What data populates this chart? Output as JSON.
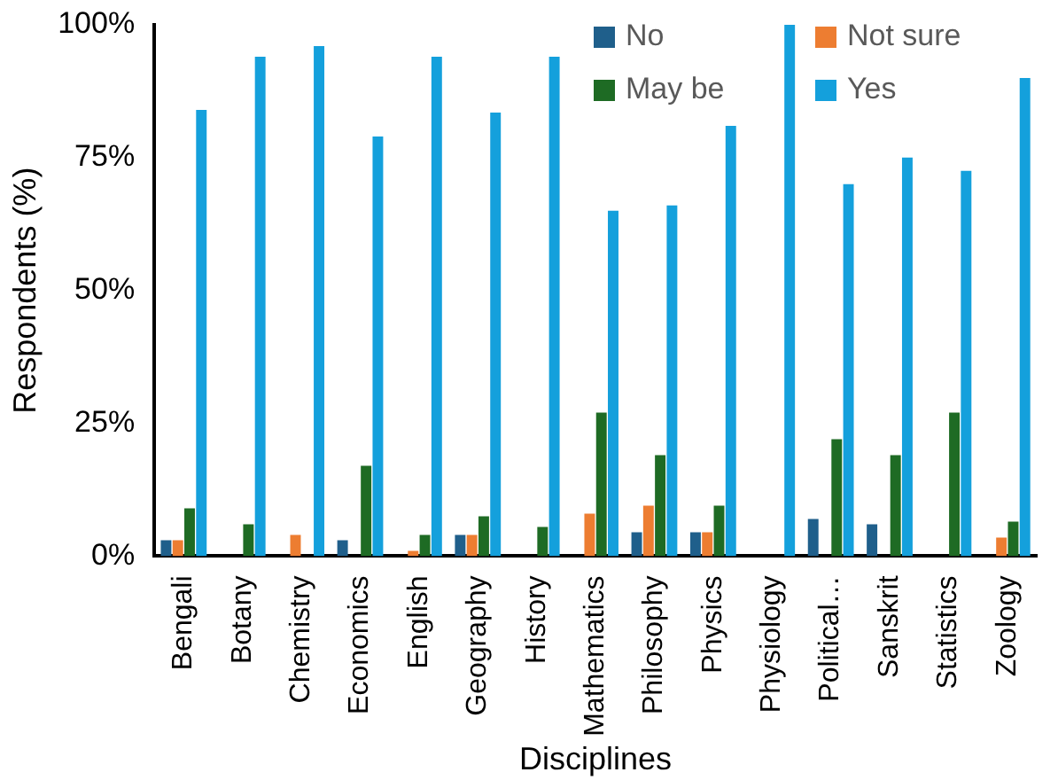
{
  "chart_data": {
    "type": "bar",
    "xlabel": "Disciplines",
    "ylabel": "Respondents (%)",
    "categories": [
      "Bengali",
      "Botany",
      "Chemistry",
      "Economics",
      "English",
      "Geography",
      "History",
      "Mathematics",
      "Philosophy",
      "Physics",
      "Physiology",
      "Political…",
      "Sanskrit",
      "Statistics",
      "Zoology"
    ],
    "series": [
      {
        "name": "No",
        "color": "#1f5f8b",
        "values": [
          3,
          0,
          0,
          3,
          0,
          4,
          0,
          0,
          4.5,
          4.5,
          0,
          7,
          6,
          0,
          0
        ]
      },
      {
        "name": "Not sure",
        "color": "#ed7d31",
        "values": [
          3,
          0,
          4,
          0,
          1,
          4,
          0,
          8,
          9.5,
          4.5,
          0,
          0,
          0,
          0,
          3.5
        ]
      },
      {
        "name": "May be",
        "color": "#1e6b24",
        "values": [
          9,
          6,
          0,
          17,
          4,
          7.5,
          5.5,
          27,
          19,
          9.5,
          0,
          22,
          19,
          27,
          6.5
        ]
      },
      {
        "name": "Yes",
        "color": "#14a0dc",
        "values": [
          84,
          94,
          96,
          79,
          94,
          83.5,
          94,
          65,
          66,
          81,
          100,
          70,
          75,
          72.5,
          90
        ]
      }
    ],
    "ylim": [
      0,
      100
    ],
    "yticks": [
      {
        "value": 0,
        "label": "0%"
      },
      {
        "value": 25,
        "label": "25%"
      },
      {
        "value": 50,
        "label": "50%"
      },
      {
        "value": 75,
        "label": "75%"
      },
      {
        "value": 100,
        "label": "100%"
      }
    ],
    "grid": false,
    "legend": "top right"
  }
}
